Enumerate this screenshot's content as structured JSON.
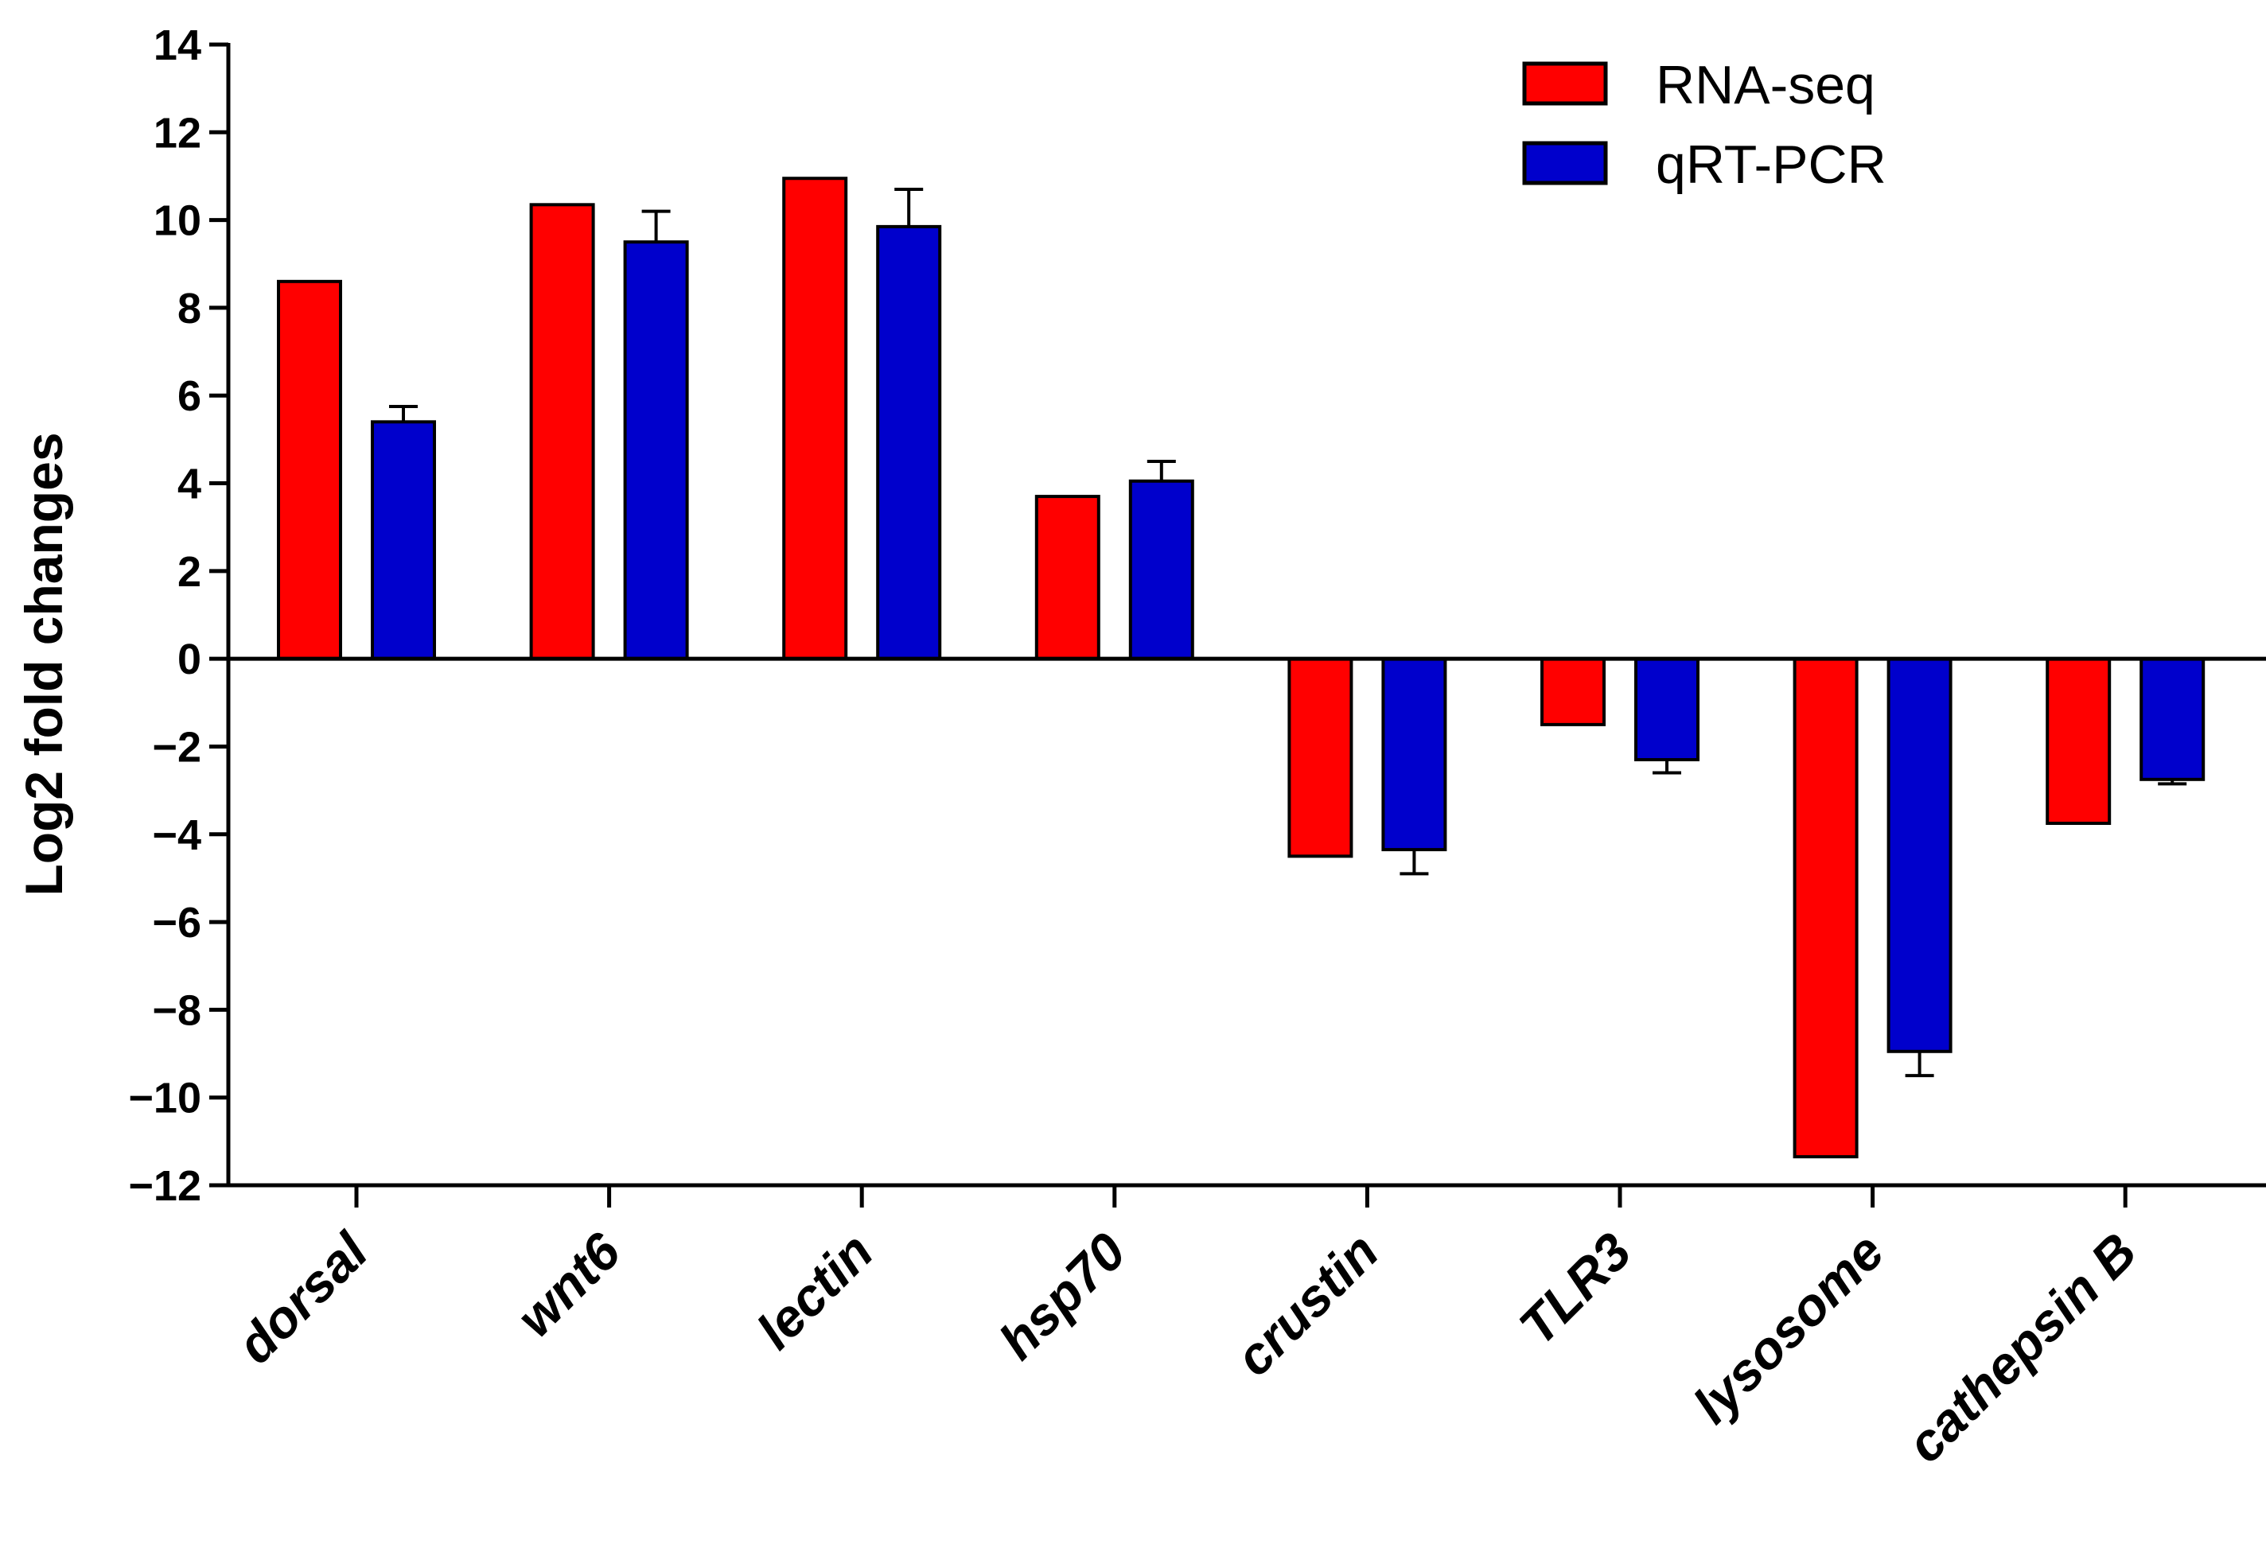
{
  "chart_data": {
    "type": "bar",
    "title": "",
    "xlabel": "",
    "ylabel": "Log2 fold changes",
    "ylim": [
      -12,
      14
    ],
    "yticks": [
      14,
      12,
      10,
      8,
      6,
      4,
      2,
      0,
      -2,
      -4,
      -6,
      -8,
      -10,
      -12
    ],
    "ytick_labels": [
      "14",
      "12",
      "10",
      "8",
      "6",
      "4",
      "2",
      "0",
      "−2",
      "−4",
      "−6",
      "−8",
      "−10",
      "−12"
    ],
    "categories": [
      "dorsal",
      "wnt6",
      "lectin",
      "hsp70",
      "crustin",
      "TLR3",
      "lysosome",
      "cathepsin B"
    ],
    "series": [
      {
        "name": "RNA-seq",
        "color": "#ff0000",
        "values": [
          8.6,
          10.35,
          10.95,
          3.7,
          -4.5,
          -1.5,
          -11.35,
          -3.75
        ],
        "errors": [
          null,
          null,
          null,
          null,
          null,
          null,
          null,
          null
        ]
      },
      {
        "name": "qRT-PCR",
        "color": "#0000cc",
        "values": [
          5.4,
          9.5,
          9.85,
          4.05,
          -4.35,
          -2.3,
          -8.95,
          -2.75
        ],
        "errors": [
          0.35,
          0.7,
          0.85,
          0.45,
          0.55,
          0.3,
          0.55,
          0.1
        ]
      }
    ],
    "legend": "top-right",
    "grid": false
  }
}
